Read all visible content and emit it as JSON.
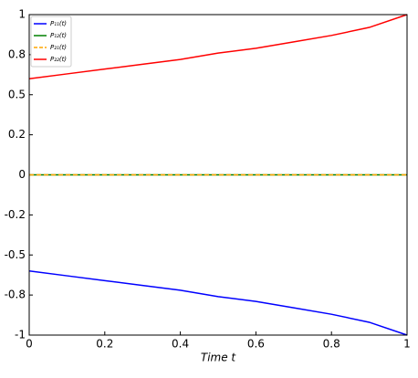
{
  "chart_data": {
    "type": "line",
    "xlabel": "Time t",
    "x": [
      0,
      0.1,
      0.2,
      0.3,
      0.4,
      0.5,
      0.6,
      0.7,
      0.8,
      0.9,
      1
    ],
    "series": [
      {
        "name": "P₁₁(t)",
        "color": "#0000ff",
        "linestyle": "solid",
        "values": [
          -0.6,
          -0.63,
          -0.66,
          -0.69,
          -0.72,
          -0.76,
          -0.79,
          -0.83,
          -0.87,
          -0.92,
          -1
        ]
      },
      {
        "name": "P₁₂(t)",
        "color": "#008000",
        "linestyle": "solid",
        "values": [
          0,
          0,
          0,
          0,
          0,
          0,
          0,
          0,
          0,
          0,
          0
        ]
      },
      {
        "name": "P₂₁(t)",
        "color": "#ffa500",
        "linestyle": "dashed",
        "values": [
          0,
          0,
          0,
          0,
          0,
          0,
          0,
          0,
          0,
          0,
          0
        ]
      },
      {
        "name": "P₂₂(t)",
        "color": "#ff0000",
        "linestyle": "solid",
        "values": [
          0.6,
          0.63,
          0.66,
          0.69,
          0.72,
          0.76,
          0.79,
          0.83,
          0.87,
          0.92,
          1
        ]
      }
    ],
    "xlim": [
      0,
      1
    ],
    "xticks": [
      0,
      0.2,
      0.4,
      0.6,
      0.8,
      1
    ],
    "ylim": [
      -1,
      1
    ],
    "yticks": [
      -1,
      {
        "value": -0.75,
        "label": "-0.8"
      },
      -0.5,
      {
        "value": -0.25,
        "label": "-0.2"
      },
      0,
      {
        "value": 0.25,
        "label": "0.2"
      },
      0.5,
      {
        "value": 0.75,
        "label": "0.8"
      },
      1
    ],
    "legend": "upper left"
  }
}
